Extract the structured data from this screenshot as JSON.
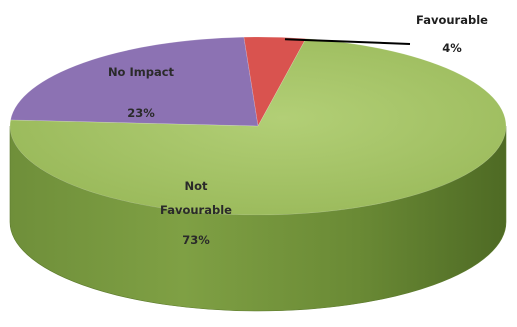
{
  "chart_data": {
    "type": "pie",
    "style": "3d",
    "title": "",
    "legend": "none",
    "slices": [
      {
        "label_lines": [
          "Favourable"
        ],
        "value": 4,
        "value_label": "4%",
        "color": "#d9534f"
      },
      {
        "label_lines": [
          "Not",
          "Favourable"
        ],
        "value": 73,
        "value_label": "73%",
        "color": "#9cbb5b"
      },
      {
        "label_lines": [
          "No Impact"
        ],
        "value": 23,
        "value_label": "23%",
        "color": "#8c72b3"
      }
    ]
  }
}
